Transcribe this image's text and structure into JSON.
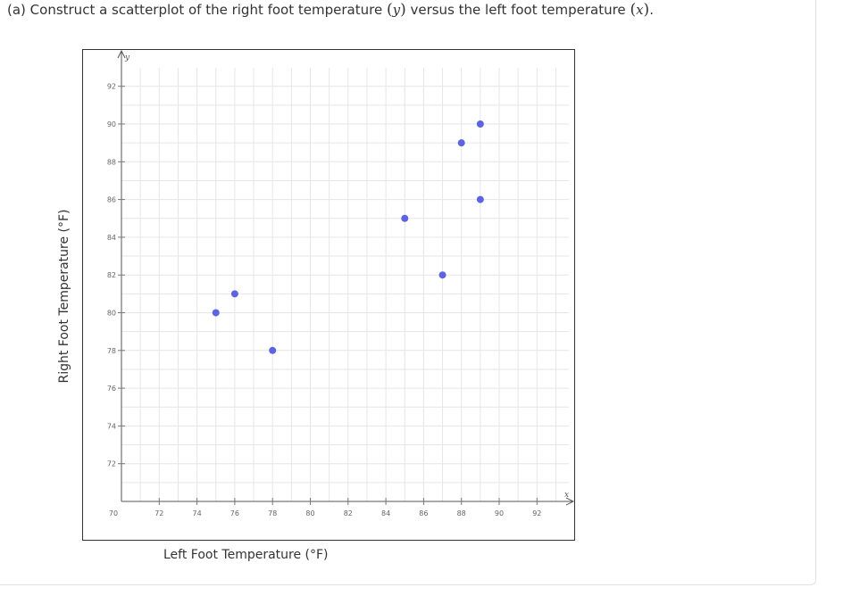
{
  "question": {
    "prefix": "(a) Construct a scatterplot of the right foot temperature ",
    "y_var": "y",
    "middle": " versus the left foot temperature ",
    "x_var": "x",
    "suffix": "."
  },
  "chart_data": {
    "type": "scatter",
    "xlabel": "Left Foot Temperature (°F)",
    "ylabel": "Right Foot Temperature (°F)",
    "x_axis_letter": "x",
    "y_axis_letter": "y",
    "xlim": [
      70,
      94
    ],
    "ylim": [
      70,
      93
    ],
    "x_ticks": [
      70,
      72,
      74,
      76,
      78,
      80,
      82,
      84,
      86,
      88,
      90,
      92
    ],
    "y_ticks": [
      72,
      74,
      76,
      78,
      80,
      82,
      84,
      86,
      88,
      90,
      92
    ],
    "grid": true,
    "point_color": "#5b63e8",
    "points": [
      {
        "x": 75,
        "y": 80
      },
      {
        "x": 76,
        "y": 81
      },
      {
        "x": 78,
        "y": 78
      },
      {
        "x": 85,
        "y": 85
      },
      {
        "x": 87,
        "y": 82
      },
      {
        "x": 88,
        "y": 89
      },
      {
        "x": 89,
        "y": 90
      },
      {
        "x": 89,
        "y": 86
      }
    ]
  }
}
